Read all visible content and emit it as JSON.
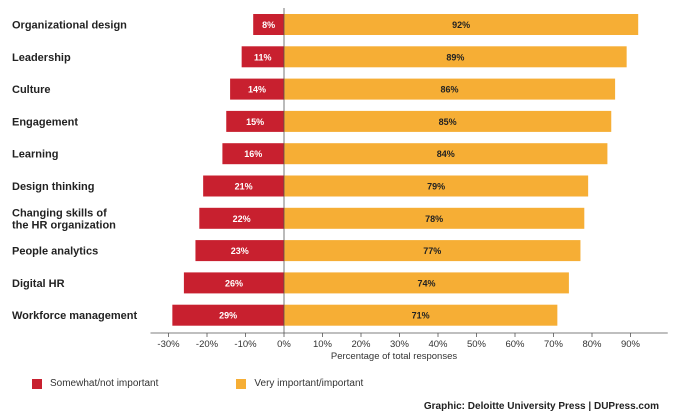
{
  "chart_data": {
    "type": "bar",
    "orientation": "horizontal-diverging",
    "categories": [
      [
        "Organizational design"
      ],
      [
        "Leadership"
      ],
      [
        "Culture"
      ],
      [
        "Engagement"
      ],
      [
        "Learning"
      ],
      [
        "Design thinking"
      ],
      [
        "Changing skills of",
        "the HR organization"
      ],
      [
        "People analytics"
      ],
      [
        "Digital HR"
      ],
      [
        "Workforce management"
      ]
    ],
    "series": [
      {
        "name": "Somewhat/not important",
        "color": "#c8202f",
        "values": [
          -8,
          -11,
          -14,
          -15,
          -16,
          -21,
          -22,
          -23,
          -26,
          -29
        ],
        "labels": [
          "8%",
          "11%",
          "14%",
          "15%",
          "16%",
          "21%",
          "22%",
          "23%",
          "26%",
          "29%"
        ]
      },
      {
        "name": "Very important/important",
        "color": "#f6ae35",
        "values": [
          92,
          89,
          86,
          85,
          84,
          79,
          78,
          77,
          74,
          71
        ],
        "labels": [
          "92%",
          "89%",
          "86%",
          "85%",
          "84%",
          "79%",
          "78%",
          "77%",
          "74%",
          "71%"
        ]
      }
    ],
    "xlim": [
      -30,
      95
    ],
    "xticks": [
      -30,
      -20,
      -10,
      0,
      10,
      20,
      30,
      40,
      50,
      60,
      70,
      80,
      90
    ],
    "xtick_labels": [
      "-30%",
      "-20%",
      "-10%",
      "0%",
      "10%",
      "20%",
      "30%",
      "40%",
      "50%",
      "60%",
      "70%",
      "80%",
      "90%"
    ],
    "xlabel": "Percentage of total responses",
    "legend_position": "bottom-left",
    "grid": false
  },
  "credit": "Graphic: Deloitte University Press  |  DUPress.com"
}
